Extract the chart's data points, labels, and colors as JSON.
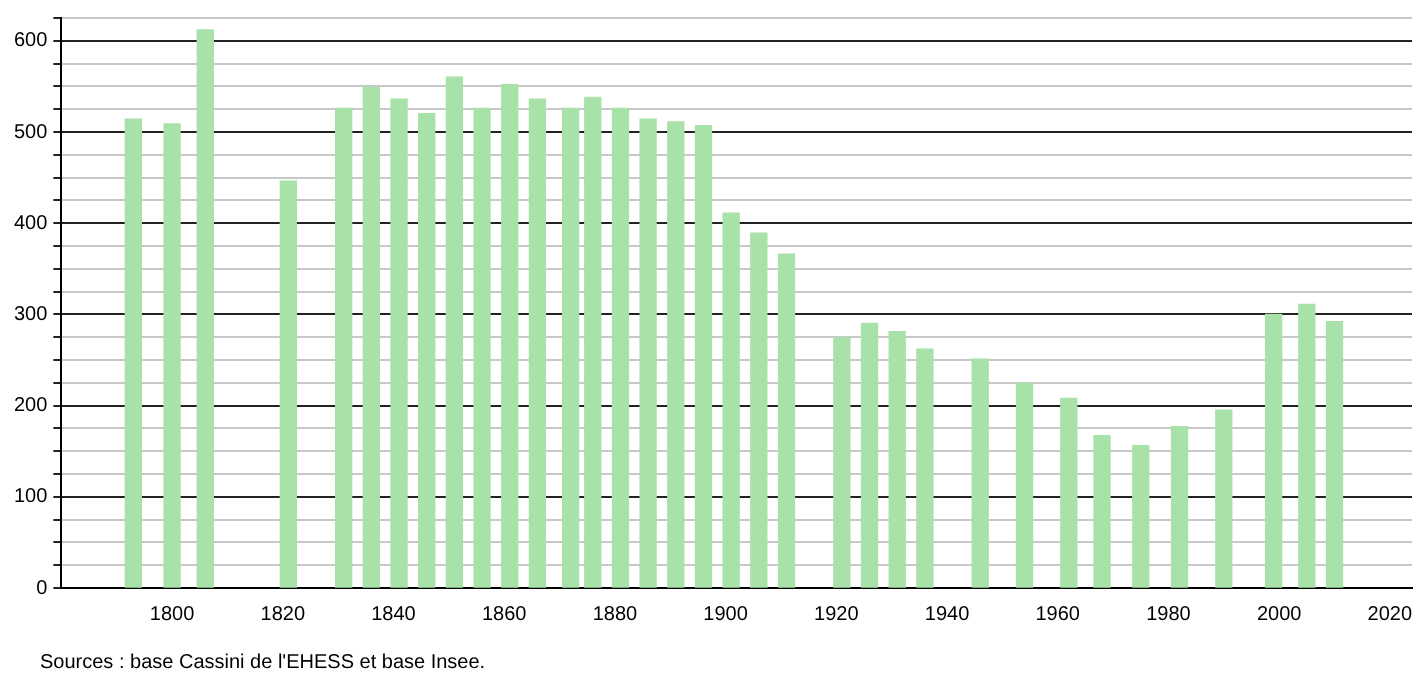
{
  "chart_data": {
    "type": "bar",
    "annotations": [
      "Sources : base Cassini de l'EHESS et base Insee."
    ],
    "x": [
      1793,
      1800,
      1806,
      1821,
      1831,
      1836,
      1841,
      1846,
      1851,
      1856,
      1861,
      1866,
      1872,
      1876,
      1881,
      1886,
      1891,
      1896,
      1901,
      1906,
      1911,
      1921,
      1926,
      1931,
      1936,
      1946,
      1954,
      1962,
      1968,
      1975,
      1982,
      1990,
      1999,
      2005,
      2010
    ],
    "values": [
      514,
      509,
      612,
      446,
      526,
      549,
      536,
      520,
      560,
      526,
      552,
      536,
      526,
      538,
      526,
      514,
      511,
      507,
      411,
      389,
      366,
      274,
      290,
      281,
      262,
      251,
      224,
      208,
      167,
      156,
      177,
      195,
      300,
      311,
      292
    ],
    "color": "#a8e2a8",
    "xlim": [
      1780,
      2024
    ],
    "xticks": [
      1800,
      1820,
      1840,
      1860,
      1880,
      1900,
      1920,
      1940,
      1960,
      1980,
      2000,
      2020
    ],
    "ylim": [
      0,
      625
    ],
    "yticks": [
      0,
      {
        "value": 25,
        "label": null
      },
      {
        "value": 50,
        "label": null
      },
      {
        "value": 75,
        "label": null
      },
      100,
      {
        "value": 125,
        "label": null
      },
      {
        "value": 150,
        "label": null
      },
      {
        "value": 175,
        "label": null
      },
      200,
      {
        "value": 225,
        "label": null
      },
      {
        "value": 250,
        "label": null
      },
      {
        "value": 275,
        "label": null
      },
      300,
      {
        "value": 325,
        "label": null
      },
      {
        "value": 350,
        "label": null
      },
      {
        "value": 375,
        "label": null
      },
      400,
      {
        "value": 425,
        "label": null
      },
      {
        "value": 450,
        "label": null
      },
      {
        "value": 475,
        "label": null
      },
      500,
      {
        "value": 525,
        "label": null
      },
      {
        "value": 550,
        "label": null
      },
      {
        "value": 575,
        "label": null
      },
      600,
      {
        "value": 625,
        "label": null
      }
    ],
    "grid": "y",
    "legend": false
  }
}
